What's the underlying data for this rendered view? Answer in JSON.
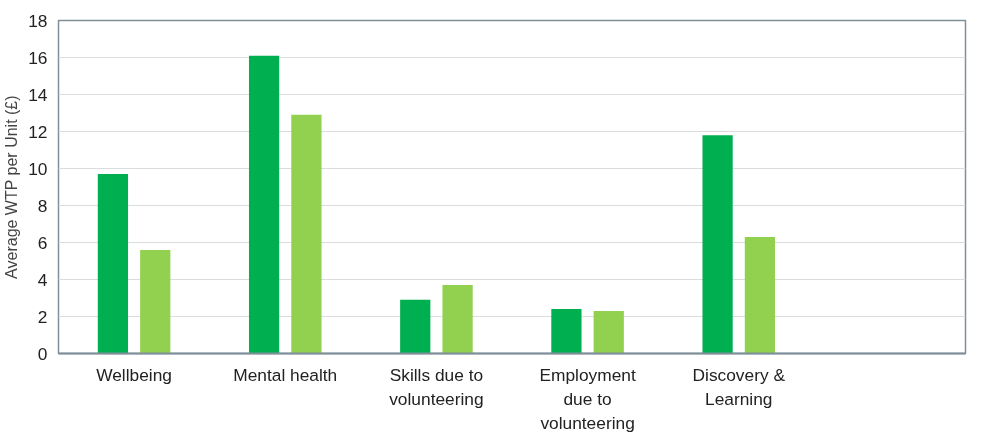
{
  "chart_data": {
    "type": "bar",
    "ylabel": "Average WTP per Unit (£)",
    "categories": [
      "Wellbeing",
      "Mental health",
      "Skills due to volunteering",
      "Employment due to volunteering",
      "Discovery & Learning",
      null
    ],
    "series": [
      {
        "color": "#00b050",
        "values": [
          9.7,
          16.1,
          2.9,
          2.4,
          11.8,
          null
        ]
      },
      {
        "color": "#92d050",
        "values": [
          5.6,
          12.9,
          3.7,
          2.3,
          6.3,
          null
        ]
      }
    ],
    "ylim": [
      0,
      18
    ],
    "yticks": [
      0,
      2,
      4,
      6,
      8,
      10,
      12,
      14,
      16,
      18
    ],
    "grid": "y"
  }
}
